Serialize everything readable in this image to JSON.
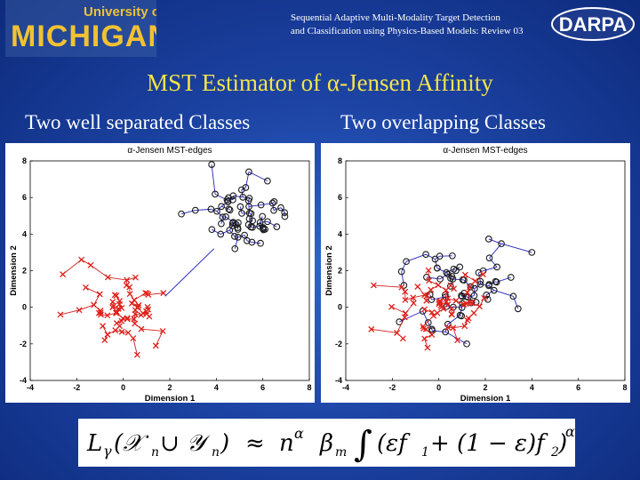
{
  "header": {
    "university_prefix": "University of",
    "university_name": "MICHIGAN",
    "line1": "Sequential Adaptive Multi-Modality Target Detection",
    "line2": "and Classification using Physics-Based Models: Review 03",
    "sponsor": "DARPA"
  },
  "title": "MST Estimator of α-Jensen Affinity",
  "subtitles": {
    "left": "Two well separated Classes",
    "right": "Two overlapping  Classes"
  },
  "colors": {
    "title": "#f4e34a",
    "class_o": "#1a1a1a",
    "class_x": "#e0201a",
    "edge": "#2020c0",
    "edge_x": "#d02020"
  },
  "chart_data": [
    {
      "type": "scatter",
      "title": "α-Jensen MST-edges",
      "xlabel": "Dimension 1",
      "ylabel": "Dimension 2",
      "xlim": [
        -4,
        8
      ],
      "ylim": [
        -4,
        8
      ],
      "xticks": [
        "-4",
        "-2",
        "0",
        "2",
        "4",
        "6",
        "8"
      ],
      "yticks": [
        "-4",
        "-2",
        "0",
        "2",
        "4",
        "6",
        "8"
      ],
      "series": [
        {
          "marker": "o",
          "center": [
            5.0,
            5.0
          ],
          "spread": [
            0.75,
            0.75
          ],
          "outliers": [
            [
              3.8,
              7.8
            ],
            [
              5.4,
              7.4
            ],
            [
              6.2,
              6.9
            ],
            [
              3.1,
              5.3
            ],
            [
              2.5,
              5.1
            ],
            [
              4.8,
              3.2
            ],
            [
              5.9,
              3.5
            ],
            [
              6.6,
              4.4
            ]
          ]
        },
        {
          "marker": "x",
          "center": [
            0.0,
            0.0
          ],
          "spread": [
            0.8,
            0.75
          ],
          "outliers": [
            [
              -1.8,
              2.6
            ],
            [
              -2.6,
              1.8
            ],
            [
              -2.7,
              -0.4
            ],
            [
              -1.4,
              2.3
            ],
            [
              1.4,
              -2.1
            ],
            [
              0.6,
              -2.6
            ],
            [
              1.7,
              -1.3
            ],
            [
              -0.8,
              -1.8
            ]
          ]
        }
      ],
      "bridge": [
        [
          1.8,
          0.6
        ],
        [
          3.9,
          3.2
        ]
      ]
    },
    {
      "type": "scatter",
      "title": "α-Jensen MST-edges",
      "xlabel": "Dimension 1",
      "ylabel": "Dimension 2",
      "xlim": [
        -4,
        8
      ],
      "ylim": [
        -4,
        8
      ],
      "xticks": [
        "-4",
        "-2",
        "0",
        "2",
        "4",
        "6",
        "8"
      ],
      "yticks": [
        "-4",
        "-2",
        "0",
        "2",
        "4",
        "6",
        "8"
      ],
      "series": [
        {
          "marker": "o",
          "center": [
            1.0,
            1.0
          ],
          "spread": [
            1.1,
            1.0
          ],
          "outliers": [
            [
              -1.4,
              2.5
            ],
            [
              -1.5,
              1.2
            ],
            [
              -1.7,
              -0.8
            ],
            [
              0.9,
              2.2
            ],
            [
              2.5,
              2.2
            ],
            [
              4.0,
              3.0
            ],
            [
              3.2,
              0.6
            ],
            [
              -0.3,
              -1.2
            ],
            [
              1.2,
              -2.0
            ]
          ]
        },
        {
          "marker": "x",
          "center": [
            0.3,
            0.3
          ],
          "spread": [
            0.85,
            0.8
          ],
          "outliers": [
            [
              -2.8,
              1.2
            ],
            [
              -2.9,
              -1.2
            ],
            [
              -1.8,
              -1.4
            ],
            [
              -0.3,
              -1.5
            ],
            [
              0.8,
              -1.8
            ],
            [
              1.9,
              1.8
            ]
          ]
        }
      ],
      "bridge": []
    }
  ],
  "formula": {
    "lhs_L": "L",
    "lhs_gamma": "γ",
    "lhs_args": "(𝒳",
    "sub_n1": "n",
    "cup": " ∪ 𝒴",
    "sub_n2": "n",
    "close": ")",
    "approx": "≈",
    "n": "n",
    "alpha": "α",
    "beta": "β",
    "sub_m": "m",
    "integral": "∫",
    "body": "(εf",
    "sub_1": "1",
    "mid": " + (1 − ε)f",
    "sub_2": "2",
    "end": ")"
  }
}
